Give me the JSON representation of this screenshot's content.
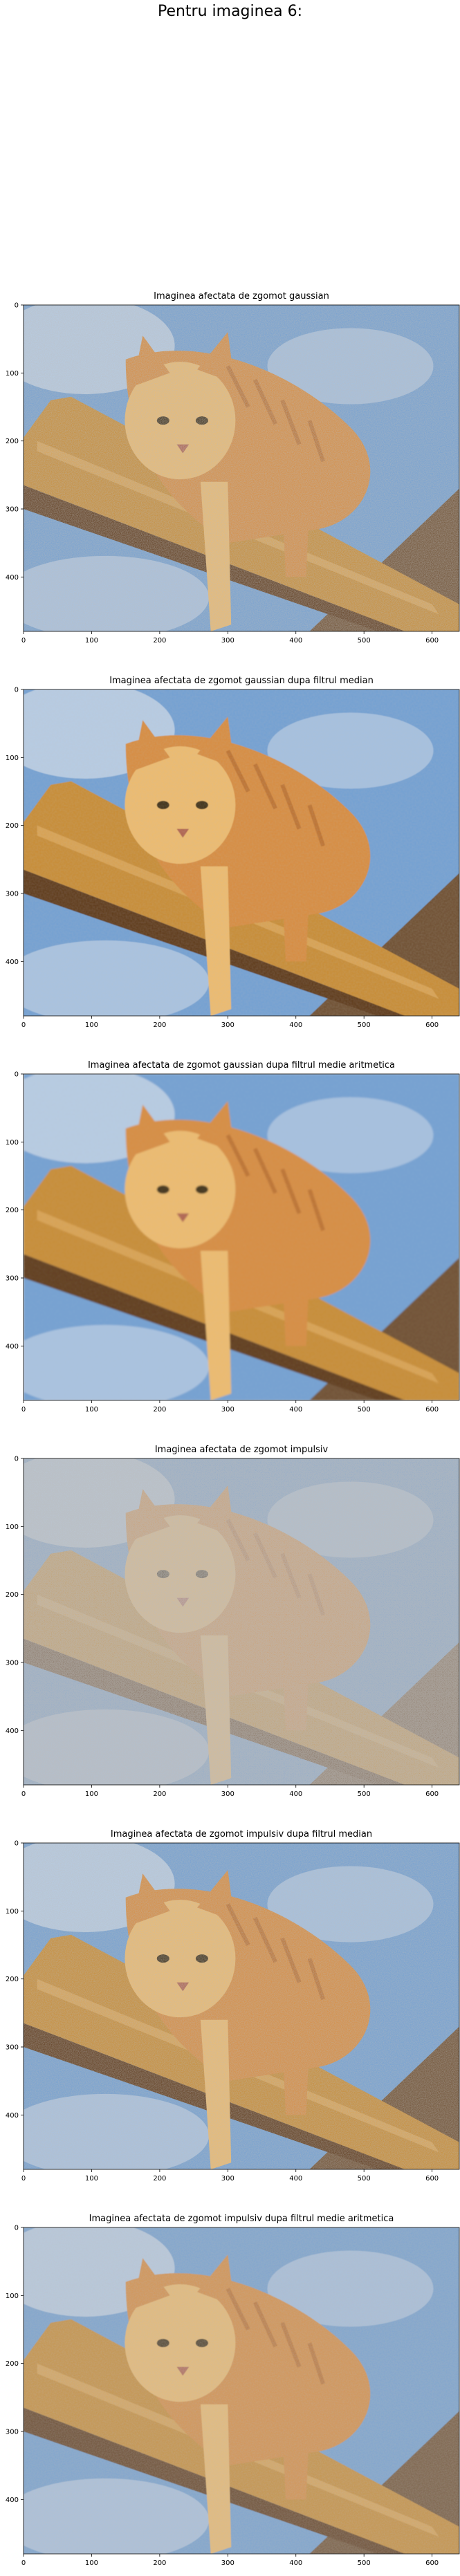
{
  "figure": {
    "suptitle": "Pentru imaginea 6:"
  },
  "chart_data": [
    {
      "type": "image",
      "title": "Imaginea afectata de zgomot gaussian",
      "xlim": [
        0,
        640
      ],
      "ylim": [
        480,
        0
      ],
      "xticks": [
        0,
        100,
        200,
        300,
        400,
        500,
        600
      ],
      "yticks": [
        0,
        100,
        200,
        300,
        400
      ],
      "grid": false,
      "content": "orange tabby cat on wooden beam against blue sky",
      "noise": "gaussian"
    },
    {
      "type": "image",
      "title": "Imaginea afectata de zgomot gaussian dupa filtrul median",
      "xlim": [
        0,
        640
      ],
      "ylim": [
        480,
        0
      ],
      "xticks": [
        0,
        100,
        200,
        300,
        400,
        500,
        600
      ],
      "yticks": [
        0,
        100,
        200,
        300,
        400
      ],
      "grid": false,
      "content": "orange tabby cat on wooden beam against blue sky",
      "noise": "gaussian-median"
    },
    {
      "type": "image",
      "title": "Imaginea afectata de zgomot gaussian dupa filtrul medie aritmetica",
      "xlim": [
        0,
        640
      ],
      "ylim": [
        480,
        0
      ],
      "xticks": [
        0,
        100,
        200,
        300,
        400,
        500,
        600
      ],
      "yticks": [
        0,
        100,
        200,
        300,
        400
      ],
      "grid": false,
      "content": "orange tabby cat on wooden beam against blue sky",
      "noise": "gaussian-mean"
    },
    {
      "type": "image",
      "title": "Imaginea afectata de zgomot impulsiv",
      "xlim": [
        0,
        640
      ],
      "ylim": [
        480,
        0
      ],
      "xticks": [
        0,
        100,
        200,
        300,
        400,
        500,
        600
      ],
      "yticks": [
        0,
        100,
        200,
        300,
        400
      ],
      "grid": false,
      "content": "orange tabby cat on wooden beam against blue sky",
      "noise": "impulse"
    },
    {
      "type": "image",
      "title": "Imaginea afectata de zgomot impulsiv dupa filtrul median",
      "xlim": [
        0,
        640
      ],
      "ylim": [
        480,
        0
      ],
      "xticks": [
        0,
        100,
        200,
        300,
        400,
        500,
        600
      ],
      "yticks": [
        0,
        100,
        200,
        300,
        400
      ],
      "grid": false,
      "content": "orange tabby cat on wooden beam against blue sky",
      "noise": "impulse-median"
    },
    {
      "type": "image",
      "title": "Imaginea afectata de zgomot impulsiv dupa filtrul medie aritmetica",
      "xlim": [
        0,
        640
      ],
      "ylim": [
        480,
        0
      ],
      "xticks": [
        0,
        100,
        200,
        300,
        400,
        500,
        600
      ],
      "yticks": [
        0,
        100,
        200,
        300,
        400
      ],
      "grid": false,
      "content": "orange tabby cat on wooden beam against blue sky",
      "noise": "impulse-mean"
    }
  ],
  "colors": {
    "sky": "#6f9fd4",
    "sky_light": "#cfdcec",
    "beam": "#c98a2e",
    "beam_dark": "#5a3413",
    "cat": "#d98a3a",
    "cat_light": "#f0bb6a",
    "roof": "#6b4a2a"
  }
}
